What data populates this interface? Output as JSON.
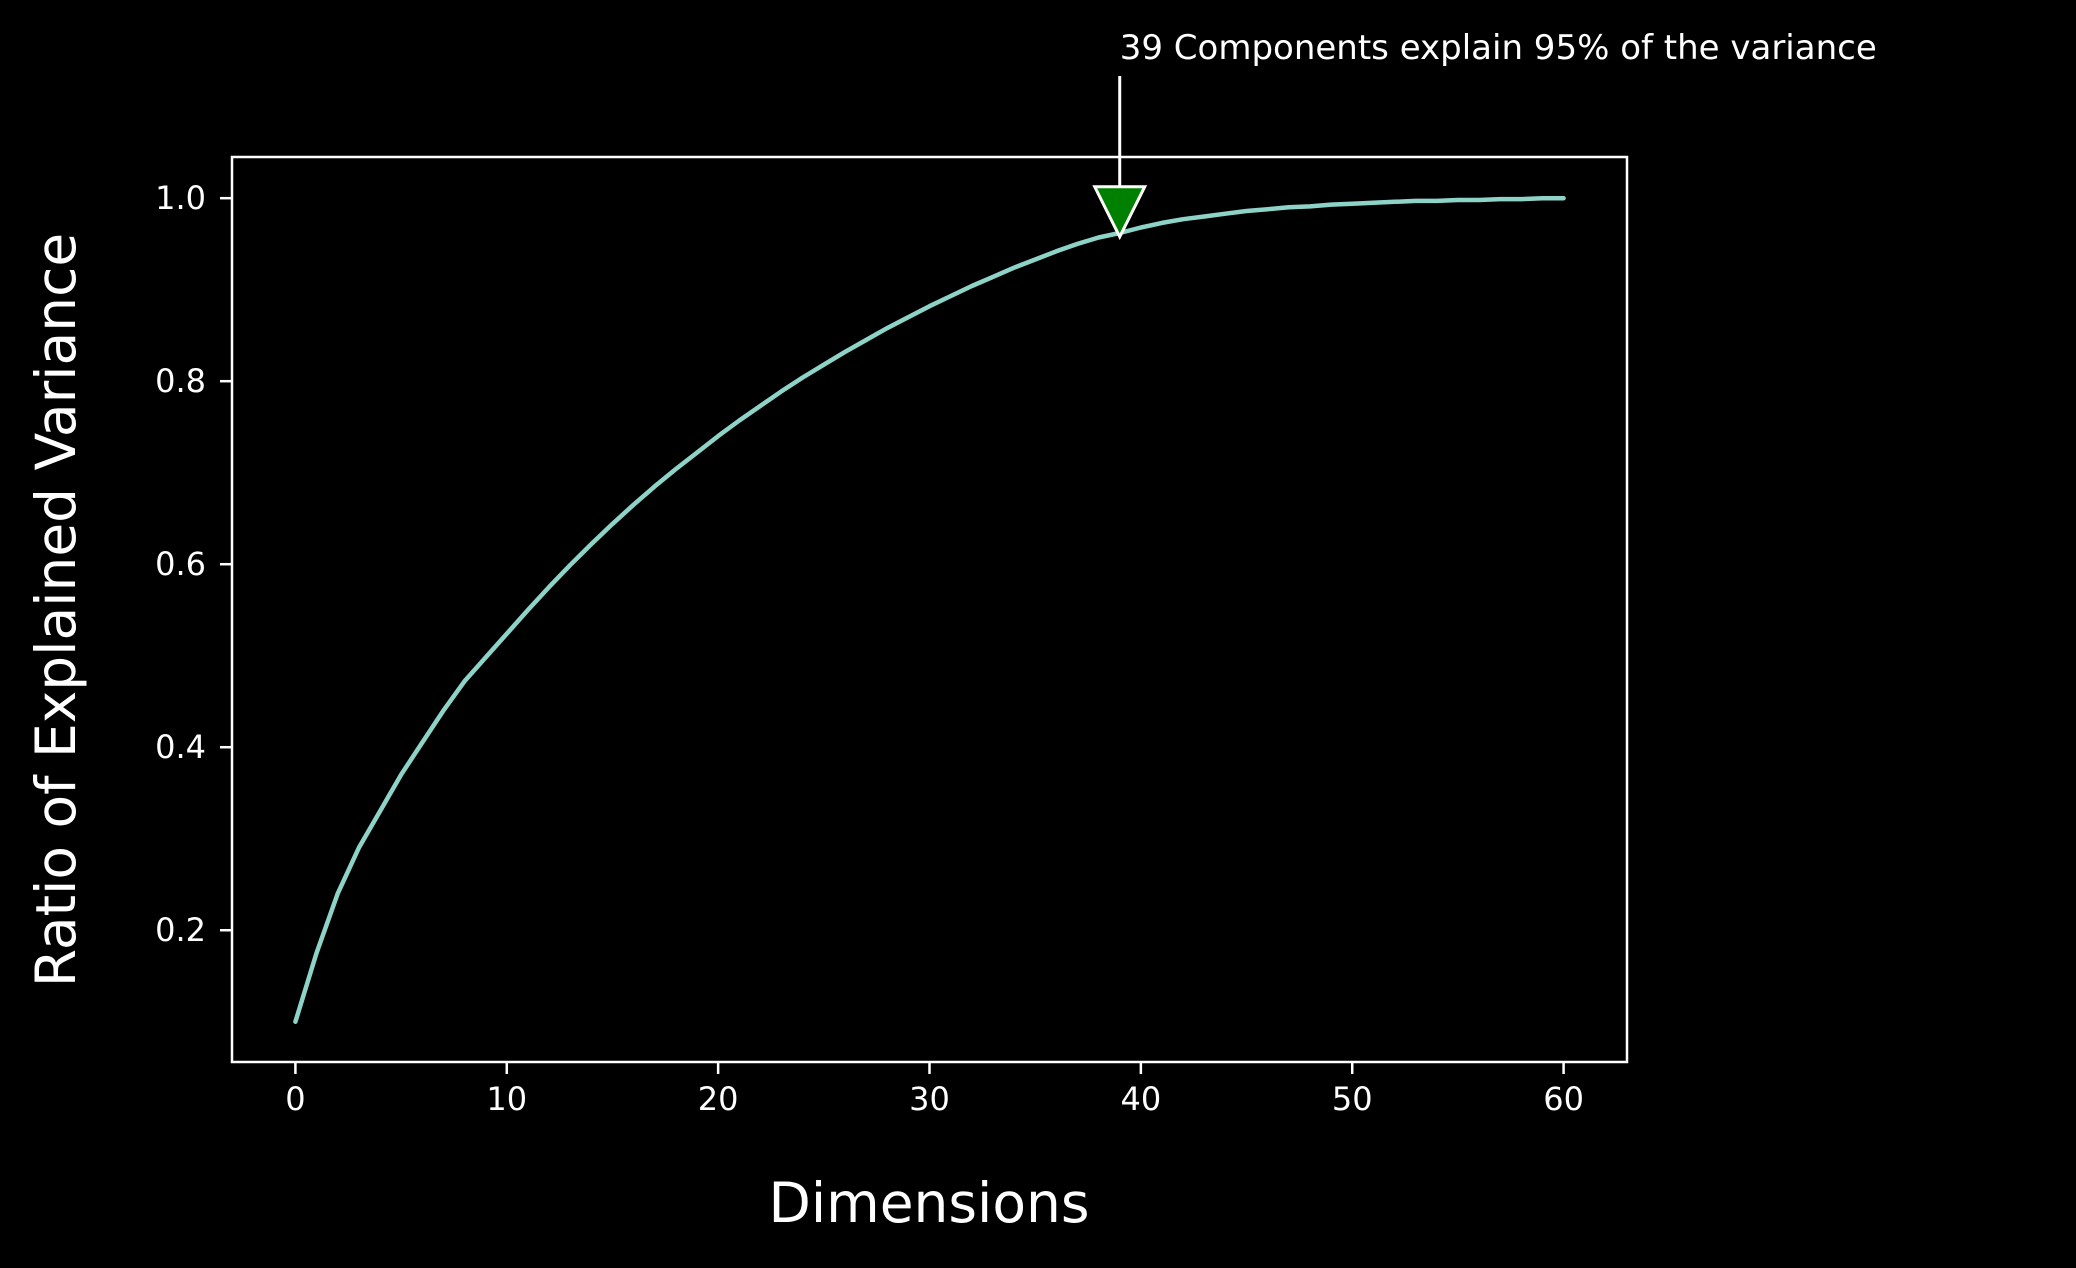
{
  "colors": {
    "background": "#000000",
    "foreground": "#ffffff",
    "line": "#8dd3c7",
    "marker": "#008000"
  },
  "chart_data": {
    "type": "line",
    "title": "",
    "xlabel": "Dimensions",
    "ylabel": "Ratio of Explained Variance",
    "xlim": [
      -3,
      63
    ],
    "ylim": [
      0.056,
      1.045
    ],
    "xticks": [
      0,
      10,
      20,
      30,
      40,
      50,
      60
    ],
    "xtick_labels": [
      "0",
      "10",
      "20",
      "30",
      "40",
      "50",
      "60"
    ],
    "yticks": [
      0.2,
      0.4,
      0.6,
      0.8,
      1.0
    ],
    "ytick_labels": [
      "0.2",
      "0.4",
      "0.6",
      "0.8",
      "1.0"
    ],
    "grid": false,
    "legend": "none",
    "series": [
      {
        "x": [
          0,
          1,
          2,
          3,
          4,
          5,
          6,
          7,
          8,
          9,
          10,
          11,
          12,
          13,
          14,
          15,
          16,
          17,
          18,
          19,
          20,
          21,
          22,
          23,
          24,
          25,
          26,
          27,
          28,
          29,
          30,
          31,
          32,
          33,
          34,
          35,
          36,
          37,
          38,
          39,
          40,
          41,
          42,
          43,
          44,
          45,
          46,
          47,
          48,
          49,
          50,
          51,
          52,
          53,
          54,
          55,
          56,
          57,
          58,
          59,
          60
        ],
        "y": [
          0.1,
          0.175,
          0.24,
          0.29,
          0.33,
          0.37,
          0.405,
          0.44,
          0.472,
          0.498,
          0.524,
          0.55,
          0.575,
          0.599,
          0.622,
          0.644,
          0.665,
          0.685,
          0.704,
          0.722,
          0.74,
          0.757,
          0.773,
          0.789,
          0.804,
          0.818,
          0.832,
          0.845,
          0.858,
          0.87,
          0.882,
          0.893,
          0.904,
          0.914,
          0.924,
          0.933,
          0.942,
          0.95,
          0.957,
          0.962,
          0.968,
          0.973,
          0.977,
          0.98,
          0.983,
          0.986,
          0.988,
          0.99,
          0.991,
          0.993,
          0.994,
          0.995,
          0.996,
          0.997,
          0.997,
          0.998,
          0.998,
          0.999,
          0.999,
          1.0,
          1.0
        ]
      }
    ],
    "annotation": {
      "text": "39 Components explain 95% of the variance",
      "x": 39,
      "y": 0.96,
      "marker": "down-triangle"
    }
  }
}
